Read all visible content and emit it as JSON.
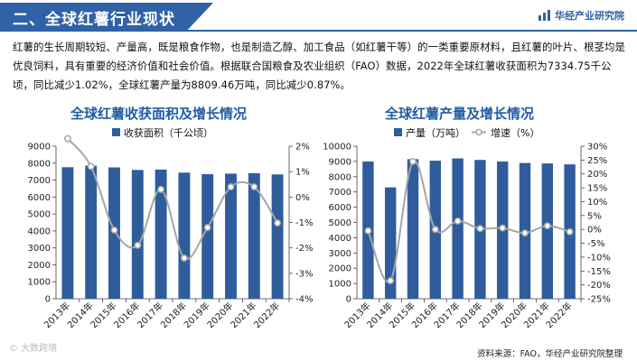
{
  "header": {
    "title": "二、全球红薯行业现状",
    "brand": "华经产业研究院"
  },
  "intro_text": "红薯的生长周期较短、产量高，既是粮食作物，也是制造乙醇、加工食品（如红薯干等）的一类重要原材料，且红薯的叶片、根茎均是优良饲料，具有重要的经济价值和社会价值。根据联合国粮食及农业组织（FAO）数据，2022年全球红薯收获面积为7334.75千公顷，同比减少1.02%，全球红薯产量为8809.46万吨，同比减少0.87%。",
  "footer": {
    "source": "资料来源：FAO，华经产业研究院整理",
    "watermark": "© 大数跨境"
  },
  "colors": {
    "bar": "#2f5d9c",
    "line": "#a6a6a6",
    "title": "#1f5ca6",
    "header": "#2f62a6"
  },
  "chart_data": [
    {
      "type": "bar",
      "title": "全球红薯收获面积及增长情况",
      "categories": [
        "2013年",
        "2014年",
        "2015年",
        "2016年",
        "2017年",
        "2018年",
        "2019年",
        "2020年",
        "2021年",
        "2022年"
      ],
      "series": [
        {
          "name": "收获面积（千公顷）",
          "type": "bar",
          "axis": "left",
          "values": [
            7760,
            7850,
            7750,
            7600,
            7620,
            7440,
            7350,
            7380,
            7410,
            7335
          ]
        }
      ],
      "line_values": [
        2.3,
        1.2,
        -1.3,
        -1.9,
        0.3,
        -2.4,
        -1.2,
        0.4,
        0.4,
        -1.02
      ],
      "left_axis": {
        "min": 0,
        "max": 9000,
        "step": 1000,
        "ticks": [
          "0",
          "1000",
          "2000",
          "3000",
          "4000",
          "5000",
          "6000",
          "7000",
          "8000",
          "9000"
        ]
      },
      "right_axis": {
        "min": -4,
        "max": 2,
        "step": 1,
        "ticks": [
          "-4%",
          "-3%",
          "-2%",
          "-1%",
          "0%",
          "1%",
          "2%"
        ]
      }
    },
    {
      "type": "bar",
      "title": "全球红薯产量及增长情况",
      "categories": [
        "2013年",
        "2014年",
        "2015年",
        "2016年",
        "2017年",
        "2018年",
        "2019年",
        "2020年",
        "2021年",
        "2022年"
      ],
      "series": [
        {
          "name": "产量（万吨）",
          "type": "bar",
          "axis": "left",
          "values": [
            9000,
            7300,
            9150,
            9050,
            9200,
            9100,
            9000,
            8900,
            8870,
            8809
          ]
        },
        {
          "name": "增速（%）",
          "type": "line",
          "axis": "right",
          "values": [
            -0.5,
            -18.5,
            24.5,
            0.0,
            3.0,
            0.3,
            0.5,
            -1.3,
            1.3,
            -0.87
          ]
        }
      ],
      "left_axis": {
        "min": 0,
        "max": 10000,
        "step": 1000,
        "ticks": [
          "0",
          "1000",
          "2000",
          "3000",
          "4000",
          "5000",
          "6000",
          "7000",
          "8000",
          "9000",
          "10000"
        ]
      },
      "right_axis": {
        "min": -25,
        "max": 30,
        "step": 5,
        "ticks": [
          "-25%",
          "-20%",
          "-15%",
          "-10%",
          "-5%",
          "0%",
          "5%",
          "10%",
          "15%",
          "20%",
          "25%",
          "30%"
        ]
      }
    }
  ]
}
